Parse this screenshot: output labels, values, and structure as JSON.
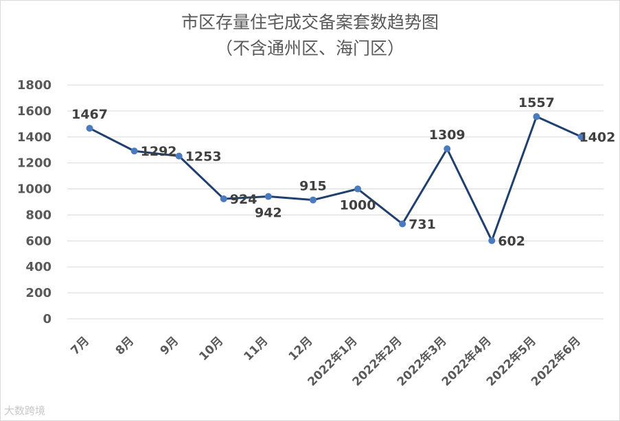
{
  "chart_data": {
    "type": "line",
    "title": "市区存量住宅成交备案套数趋势图",
    "subtitle": "（不含通州区、海门区）",
    "xlabel": "",
    "ylabel": "",
    "categories": [
      "7月",
      "8月",
      "9月",
      "10月",
      "11月",
      "12月",
      "2022年1月",
      "2022年2月",
      "2022年3月",
      "2022年4月",
      "2022年5月",
      "2022年6月"
    ],
    "series": [
      {
        "values": [
          1467,
          1292,
          1253,
          924,
          942,
          915,
          1000,
          731,
          1309,
          602,
          1557,
          1402
        ]
      }
    ],
    "ylim": [
      0,
      1800
    ],
    "yticks": [
      "0",
      "200",
      "400",
      "600",
      "800",
      "1000",
      "1200",
      "1400",
      "1600",
      "1800"
    ],
    "grid": true,
    "legend": "none",
    "colors": {
      "line": "#1f3f6e",
      "marker": "#4a7bbf",
      "grid": "#d9d9d9"
    }
  },
  "watermark": "大数跨境"
}
